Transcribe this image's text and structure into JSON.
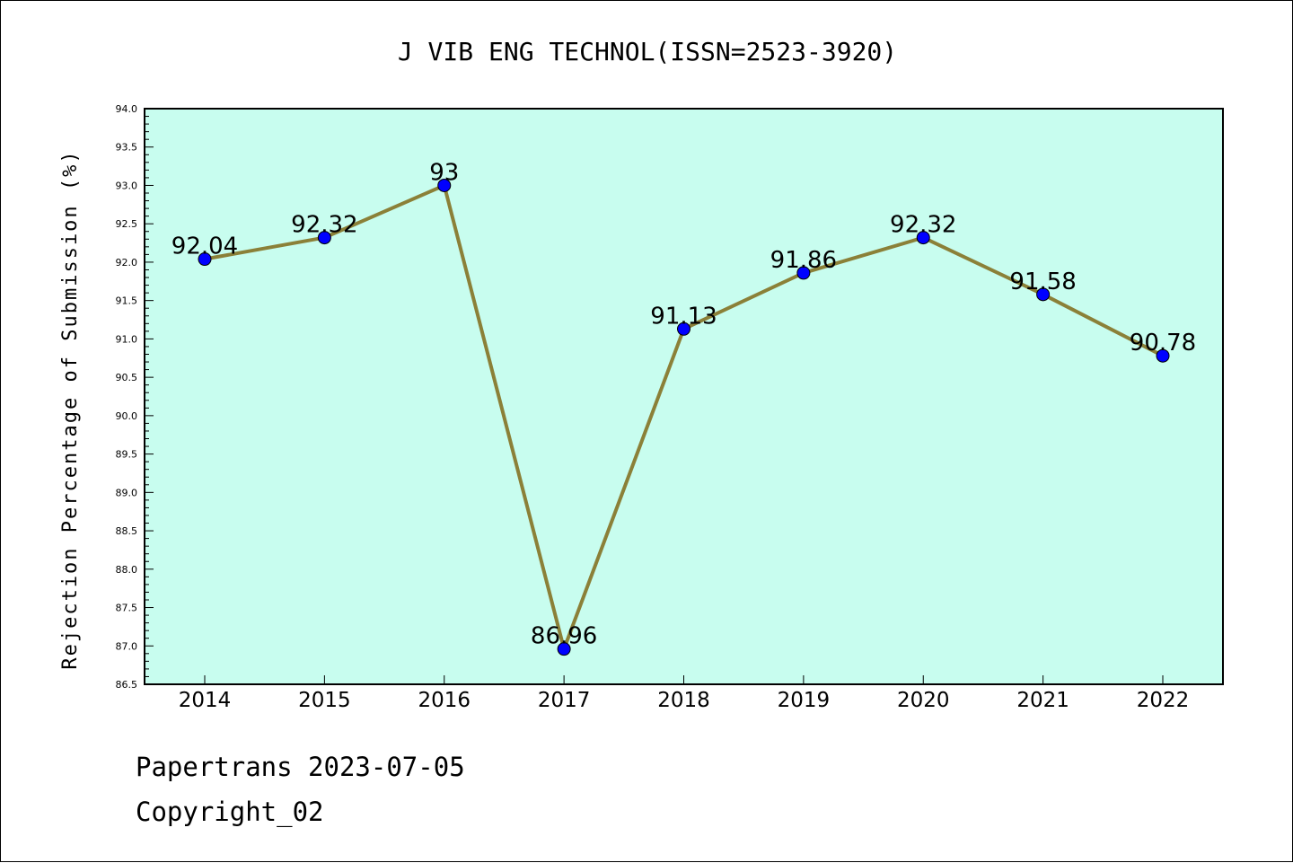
{
  "chart_data": {
    "type": "line",
    "title": "J VIB ENG TECHNOL(ISSN=2523-3920)",
    "xlabel": "",
    "ylabel": "Rejection Percentage of Submission (%)",
    "categories": [
      "2014",
      "2015",
      "2016",
      "2017",
      "2018",
      "2019",
      "2020",
      "2021",
      "2022"
    ],
    "series": [
      {
        "values": [
          92.04,
          92.32,
          93,
          86.96,
          91.13,
          91.86,
          92.32,
          91.58,
          90.78
        ]
      }
    ],
    "data_labels": [
      "92.04",
      "92.32",
      "93",
      "86.96",
      "91.13",
      "91.86",
      "92.32",
      "91.58",
      "90.78"
    ],
    "ylim": [
      86.5,
      94.0
    ],
    "yticks": [
      "86.5",
      "87.0",
      "87.5",
      "88.0",
      "88.5",
      "89.0",
      "89.5",
      "90.0",
      "90.5",
      "91.0",
      "91.5",
      "92.0",
      "92.5",
      "93.0",
      "93.5",
      "94.0"
    ],
    "grid": false,
    "legend": "none",
    "colors": {
      "plot_background": "#c8fdef",
      "line": "#8b8038",
      "marker": "#0000ff"
    }
  },
  "footer": {
    "line1": "Papertrans 2023-07-05",
    "line2": "Copyright_02"
  }
}
